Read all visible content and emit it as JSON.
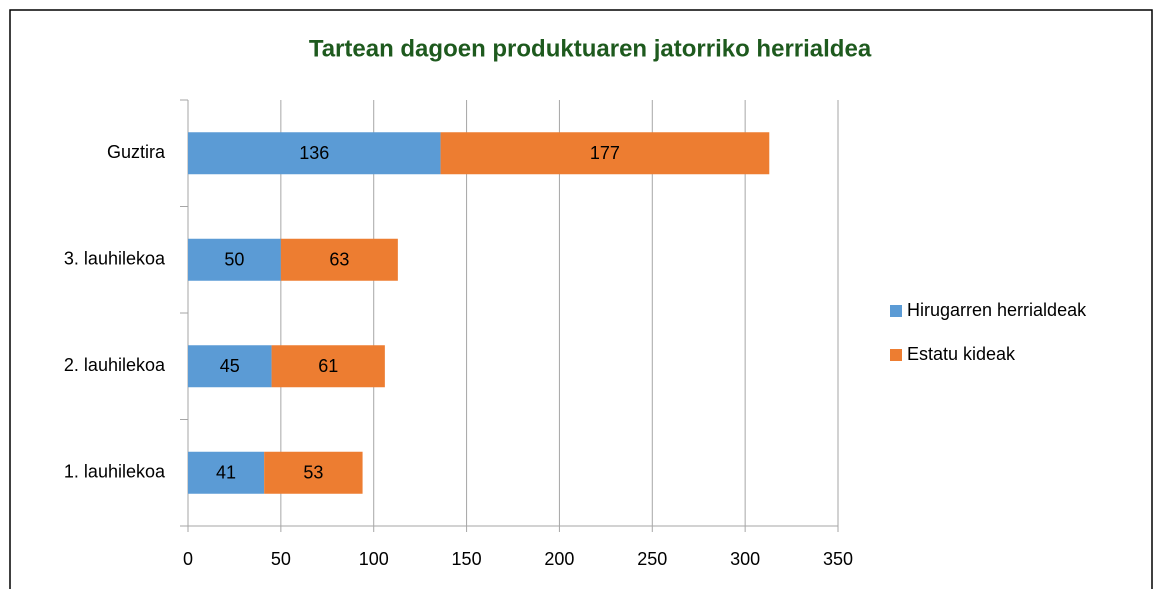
{
  "chart_data": {
    "type": "stacked_barh",
    "title": "Tartean dagoen produktuaren jatorriko herrialdea",
    "categories": [
      "1. lauhilekoa",
      "2. lauhilekoa",
      "3. lauhilekoa",
      "Guztira"
    ],
    "series": [
      {
        "name": "Hirugarren herrialdeak",
        "color": "#5b9bd5",
        "values": [
          41,
          45,
          50,
          136
        ]
      },
      {
        "name": "Estatu kideak",
        "color": "#ed7d31",
        "values": [
          53,
          61,
          63,
          177
        ]
      }
    ],
    "xlim": [
      0,
      350
    ],
    "xticks": [
      0,
      50,
      100,
      150,
      200,
      250,
      300,
      350
    ],
    "grid": true,
    "legend": "right"
  }
}
